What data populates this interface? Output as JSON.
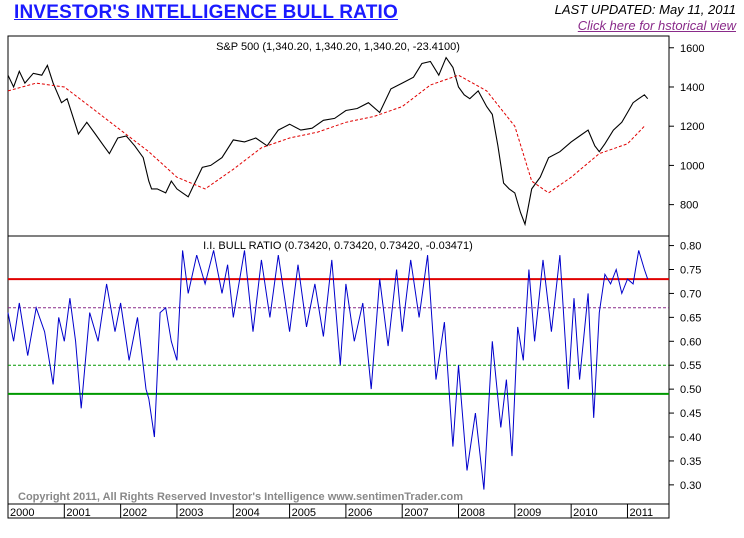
{
  "header": {
    "title": "INVESTOR'S INTELLIGENCE BULL RATIO",
    "last_updated": "LAST UPDATED:  May 11, 2011",
    "history_link": "Click here for hstorical view"
  },
  "copyright": "Copyright 2011, All Rights Reserved  Investor's Intelligence  www.sentimenTrader.com",
  "colors": {
    "spx_line": "#000000",
    "spx_ma": "#e00000",
    "ratio_line": "#0000cc",
    "upper_band": "#e00000",
    "lower_band": "#009900",
    "upper_dashed": "#8a2b8a",
    "lower_dashed": "#009900"
  },
  "chart_data": [
    {
      "type": "line",
      "title": "S&P 500 (1,340.20, 1,340.20, 1,340.20, -23.4100)",
      "ylim": [
        640,
        1660
      ],
      "yticks": [
        800,
        1000,
        1200,
        1400,
        1600
      ],
      "xlim": [
        2000.0,
        2011.4
      ],
      "series": [
        {
          "style": "solid",
          "x": [
            2000.0,
            2000.1,
            2000.2,
            2000.3,
            2000.45,
            2000.6,
            2000.7,
            2000.8,
            2000.95,
            2001.05,
            2001.15,
            2001.25,
            2001.4,
            2001.55,
            2001.7,
            2001.8,
            2001.95,
            2002.1,
            2002.25,
            2002.4,
            2002.5,
            2002.55,
            2002.65,
            2002.8,
            2002.9,
            2003.0,
            2003.1,
            2003.2,
            2003.3,
            2003.45,
            2003.6,
            2003.8,
            2004.0,
            2004.2,
            2004.4,
            2004.6,
            2004.8,
            2005.0,
            2005.2,
            2005.4,
            2005.6,
            2005.8,
            2006.0,
            2006.2,
            2006.4,
            2006.6,
            2006.8,
            2007.0,
            2007.2,
            2007.35,
            2007.5,
            2007.65,
            2007.78,
            2007.9,
            2008.0,
            2008.1,
            2008.2,
            2008.35,
            2008.5,
            2008.6,
            2008.7,
            2008.8,
            2008.9,
            2009.0,
            2009.1,
            2009.18,
            2009.3,
            2009.45,
            2009.6,
            2009.8,
            2010.0,
            2010.15,
            2010.3,
            2010.42,
            2010.5,
            2010.6,
            2010.75,
            2010.9,
            2011.0,
            2011.1,
            2011.2,
            2011.3,
            2011.36
          ],
          "y": [
            1460,
            1400,
            1480,
            1420,
            1470,
            1460,
            1510,
            1420,
            1320,
            1340,
            1250,
            1160,
            1220,
            1160,
            1100,
            1060,
            1140,
            1150,
            1100,
            1040,
            920,
            880,
            880,
            860,
            920,
            880,
            860,
            840,
            900,
            990,
            1000,
            1040,
            1130,
            1120,
            1140,
            1100,
            1180,
            1210,
            1180,
            1190,
            1230,
            1240,
            1280,
            1290,
            1320,
            1270,
            1390,
            1420,
            1450,
            1520,
            1530,
            1460,
            1550,
            1500,
            1400,
            1360,
            1340,
            1380,
            1300,
            1260,
            1100,
            910,
            880,
            860,
            760,
            700,
            880,
            940,
            1040,
            1070,
            1120,
            1150,
            1180,
            1100,
            1070,
            1110,
            1180,
            1220,
            1270,
            1320,
            1340,
            1360,
            1340
          ]
        },
        {
          "style": "dashed",
          "x": [
            2000.0,
            2000.5,
            2001.0,
            2001.5,
            2002.0,
            2002.5,
            2003.0,
            2003.5,
            2004.0,
            2004.5,
            2005.0,
            2005.5,
            2006.0,
            2006.5,
            2007.0,
            2007.5,
            2008.0,
            2008.5,
            2009.0,
            2009.3,
            2009.6,
            2010.0,
            2010.5,
            2011.0,
            2011.3
          ],
          "y": [
            1380,
            1420,
            1400,
            1290,
            1180,
            1070,
            940,
            880,
            980,
            1090,
            1140,
            1170,
            1220,
            1250,
            1300,
            1410,
            1460,
            1380,
            1200,
            920,
            860,
            940,
            1060,
            1110,
            1200
          ]
        }
      ]
    },
    {
      "type": "line",
      "title": "I.I. BULL RATIO (0.73420, 0.73420, 0.73420, -0.03471)",
      "ylim": [
        0.26,
        0.82
      ],
      "yticks": [
        0.3,
        0.35,
        0.4,
        0.45,
        0.5,
        0.55,
        0.6,
        0.65,
        0.7,
        0.75,
        0.8
      ],
      "xlim": [
        2000.0,
        2011.4
      ],
      "x_ticklabels": [
        "2000",
        "2001",
        "2002",
        "2003",
        "2004",
        "2005",
        "2006",
        "2007",
        "2008",
        "2009",
        "2010",
        "2011"
      ],
      "reference_lines": [
        {
          "value": 0.73,
          "style": "solid",
          "color": "upper_band"
        },
        {
          "value": 0.67,
          "style": "dashed",
          "color": "upper_dashed"
        },
        {
          "value": 0.55,
          "style": "dashed",
          "color": "lower_dashed"
        },
        {
          "value": 0.49,
          "style": "solid",
          "color": "lower_band"
        }
      ],
      "series": [
        {
          "x": [
            2000.0,
            2000.1,
            2000.2,
            2000.35,
            2000.5,
            2000.65,
            2000.8,
            2000.9,
            2001.0,
            2001.1,
            2001.2,
            2001.3,
            2001.45,
            2001.6,
            2001.75,
            2001.9,
            2002.0,
            2002.15,
            2002.3,
            2002.45,
            2002.5,
            2002.6,
            2002.7,
            2002.8,
            2002.9,
            2003.0,
            2003.1,
            2003.2,
            2003.35,
            2003.5,
            2003.65,
            2003.8,
            2003.9,
            2004.0,
            2004.2,
            2004.35,
            2004.5,
            2004.65,
            2004.8,
            2005.0,
            2005.15,
            2005.3,
            2005.45,
            2005.6,
            2005.75,
            2005.9,
            2006.0,
            2006.15,
            2006.3,
            2006.45,
            2006.6,
            2006.75,
            2006.9,
            2007.0,
            2007.15,
            2007.3,
            2007.45,
            2007.6,
            2007.75,
            2007.9,
            2008.0,
            2008.15,
            2008.3,
            2008.45,
            2008.6,
            2008.75,
            2008.85,
            2008.95,
            2009.05,
            2009.15,
            2009.25,
            2009.35,
            2009.5,
            2009.65,
            2009.8,
            2009.95,
            2010.05,
            2010.15,
            2010.3,
            2010.4,
            2010.5,
            2010.6,
            2010.7,
            2010.8,
            2010.9,
            2011.0,
            2011.1,
            2011.2,
            2011.3,
            2011.36
          ],
          "y": [
            0.66,
            0.6,
            0.68,
            0.57,
            0.67,
            0.62,
            0.51,
            0.65,
            0.6,
            0.69,
            0.6,
            0.46,
            0.66,
            0.6,
            0.72,
            0.62,
            0.68,
            0.56,
            0.65,
            0.5,
            0.48,
            0.4,
            0.66,
            0.67,
            0.6,
            0.56,
            0.79,
            0.7,
            0.78,
            0.72,
            0.79,
            0.7,
            0.76,
            0.65,
            0.79,
            0.62,
            0.77,
            0.65,
            0.78,
            0.62,
            0.76,
            0.63,
            0.72,
            0.61,
            0.77,
            0.55,
            0.72,
            0.6,
            0.68,
            0.5,
            0.73,
            0.59,
            0.75,
            0.62,
            0.77,
            0.65,
            0.78,
            0.52,
            0.64,
            0.38,
            0.55,
            0.33,
            0.45,
            0.29,
            0.6,
            0.42,
            0.52,
            0.36,
            0.63,
            0.56,
            0.75,
            0.6,
            0.77,
            0.62,
            0.78,
            0.5,
            0.69,
            0.52,
            0.7,
            0.44,
            0.66,
            0.74,
            0.72,
            0.75,
            0.7,
            0.73,
            0.72,
            0.79,
            0.75,
            0.73
          ]
        }
      ]
    }
  ]
}
